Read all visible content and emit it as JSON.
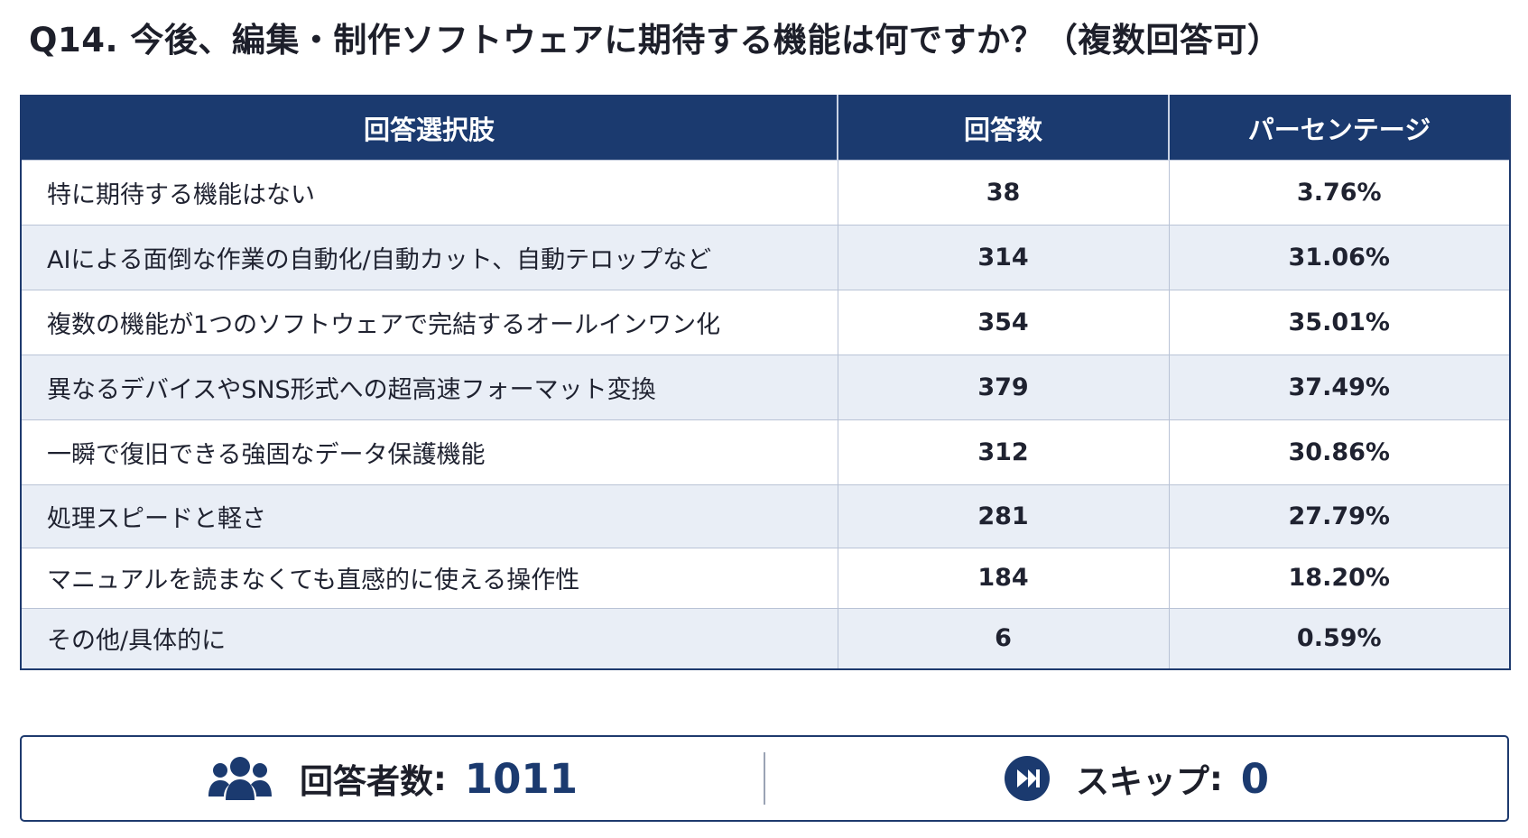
{
  "question": {
    "title": "Q14. 今後、編集・制作ソフトウェアに期待する機能は何ですか？（複数回答可）"
  },
  "table": {
    "headers": [
      "回答選択肢",
      "回答数",
      "パーセンテージ"
    ],
    "rows": [
      {
        "option": "特に期待する機能はない",
        "count": "38",
        "percent": "3.76%"
      },
      {
        "option": "AIによる面倒な作業の自動化/自動カット、自動テロップなど",
        "count": "314",
        "percent": "31.06%"
      },
      {
        "option": "複数の機能が1つのソフトウェアで完結するオールインワン化",
        "count": "354",
        "percent": "35.01%"
      },
      {
        "option": "異なるデバイスやSNS形式への超高速フォーマット変換",
        "count": "379",
        "percent": "37.49%"
      },
      {
        "option": "一瞬で復旧できる強固なデータ保護機能",
        "count": "312",
        "percent": "30.86%"
      },
      {
        "option": "処理スピードと軽さ",
        "count": "281",
        "percent": "27.79%"
      },
      {
        "option": "マニュアルを読まなくても直感的に使える操作性",
        "count": "184",
        "percent": "18.20%"
      },
      {
        "option": "その他/具体的に",
        "count": "6",
        "percent": "0.59%"
      }
    ]
  },
  "summary": {
    "respondents_icon": "users-icon",
    "respondents_label": "回答者数",
    "respondents_value": "1011",
    "skip_icon": "skip-forward-icon",
    "skip_label": "スキップ",
    "skip_value": "0",
    "colon": ":"
  },
  "colors": {
    "header_bg": "#1b3a6f",
    "accent": "#1b3a6f",
    "row_alt_bg": "#e9eef6"
  }
}
